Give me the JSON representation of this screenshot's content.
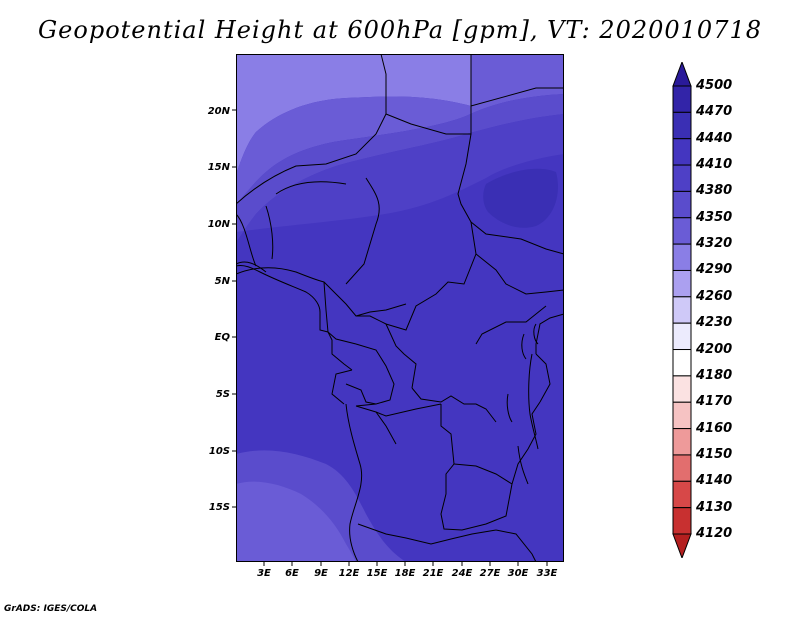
{
  "title": "Geopotential Height at 600hPa [gpm], VT: 2020010718",
  "credit": "GrADS: IGES/COLA",
  "lat_labels": [
    "20N",
    "15N",
    "10N",
    "5N",
    "EQ",
    "5S",
    "10S",
    "15S"
  ],
  "lon_labels": [
    "3E",
    "6E",
    "9E",
    "12E",
    "15E",
    "18E",
    "21E",
    "24E",
    "27E",
    "30E",
    "33E"
  ],
  "colorbar": {
    "labels": [
      "4500",
      "4470",
      "4440",
      "4410",
      "4380",
      "4350",
      "4320",
      "4290",
      "4260",
      "4230",
      "4200",
      "4180",
      "4170",
      "4160",
      "4150",
      "4140",
      "4130",
      "4120"
    ],
    "colors": [
      "#2a1a9a",
      "#3224a8",
      "#3a2fb4",
      "#4436c0",
      "#4e40c6",
      "#5a4ccc",
      "#6a5cd6",
      "#8a7ee6",
      "#aba0f0",
      "#cfc9f8",
      "#ecebfd",
      "#ffffff",
      "#fbe2e2",
      "#f6c3c3",
      "#ee9a9a",
      "#e26e6e",
      "#d74848",
      "#c83030",
      "#b41f1f"
    ]
  },
  "field": {
    "colors": {
      "c4350": "#6a5cd6",
      "c4380": "#5a4ccc",
      "c4410": "#4e40c6",
      "c4440": "#4436c0",
      "c4470": "#3a2fb4",
      "c4320": "#8a7ee6"
    }
  }
}
